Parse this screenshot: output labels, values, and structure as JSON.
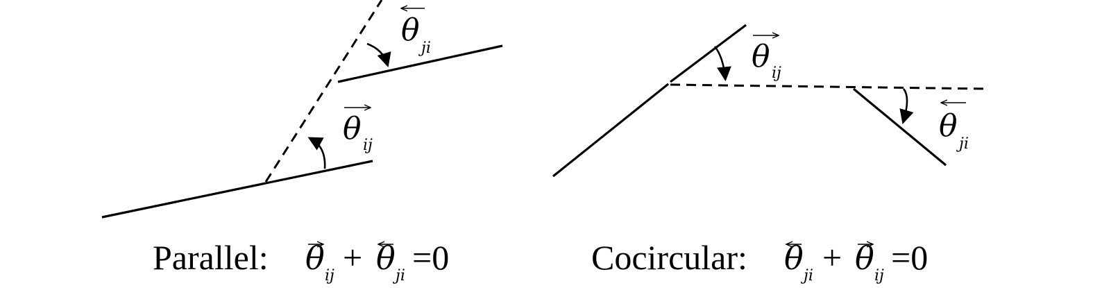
{
  "labels": {
    "theta": "θ",
    "sub_ij": "ij",
    "sub_ji": "ji"
  },
  "captions": {
    "parallel": {
      "name": "Parallel:",
      "term1_sub": "ij",
      "plus": "+",
      "term2_sub": "ji",
      "equals": "=0"
    },
    "cocircular": {
      "name": "Cocircular:",
      "term1_sub": "ji",
      "plus": "+",
      "term2_sub": "ij",
      "equals": "=0"
    }
  },
  "colors": {
    "stroke": "#000000",
    "background": "#ffffff"
  }
}
